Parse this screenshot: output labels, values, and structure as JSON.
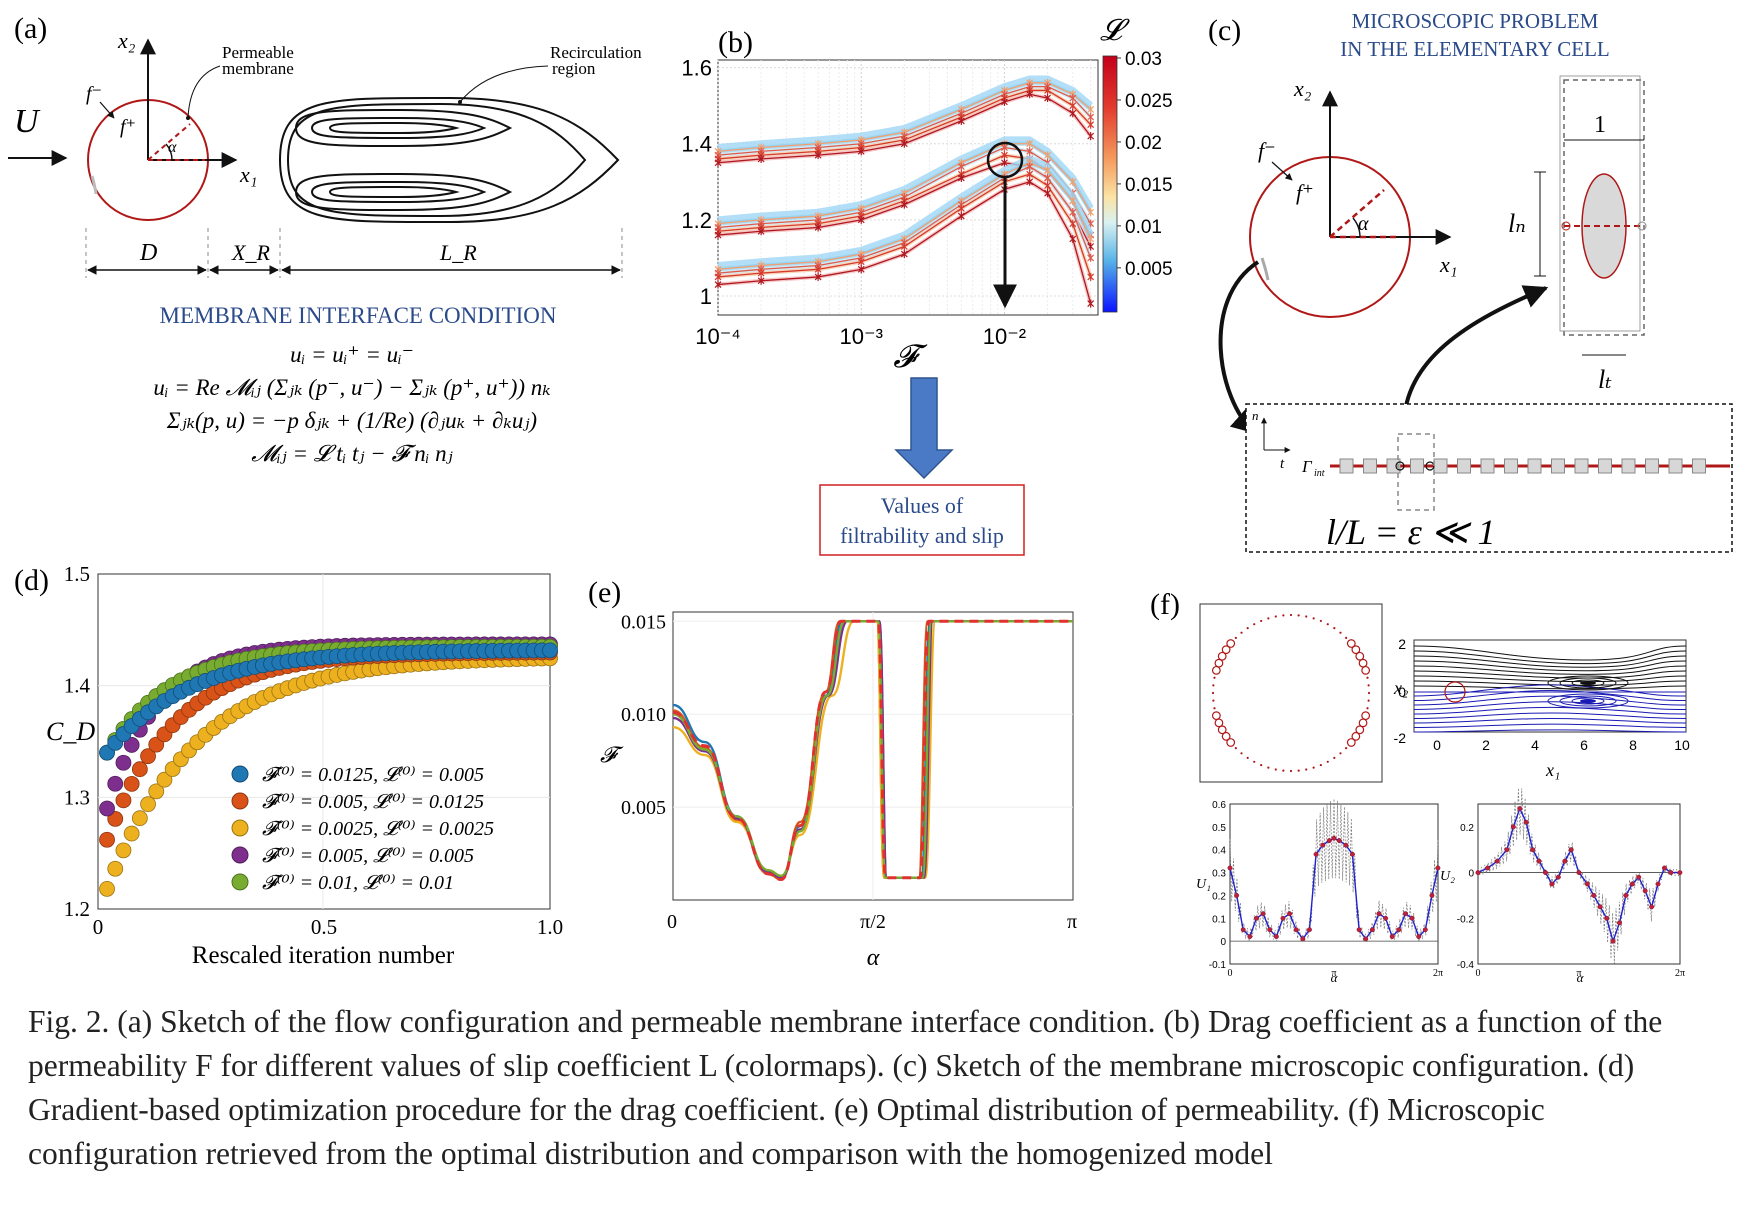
{
  "figure": {
    "caption": "Fig. 2. (a) Sketch of the flow configuration and permeable membrane interface condition. (b) Drag coefficient as a function of the permeability F for different values of slip coefficient L (colormaps). (c) Sketch of the membrane microscopic configuration. (d) Gradient-based optimization procedure for the drag coefficient. (e) Optimal distribution of permeability. (f) Microscopic configuration retrieved from the optimal distribution and comparison with the homogenized model"
  },
  "panel_a": {
    "label": "(a)",
    "x1": "x₁",
    "x2": "x₂",
    "U": "U",
    "f_minus": "f⁻",
    "f_plus": "f⁺",
    "alpha": "α",
    "membrane_label_1": "Permeable",
    "membrane_label_2": "membrane",
    "recirc_label_1": "Recirculation",
    "recirc_label_2": "region",
    "D": "D",
    "XR": "X_R",
    "LR": "L_R",
    "condition_title": "MEMBRANE INTERFACE CONDITION",
    "eq1": "uᵢ = uᵢ⁺ = uᵢ⁻",
    "eq2": "uᵢ = Re 𝓜ᵢⱼ (Σⱼₖ (p⁻, u⁻) − Σⱼₖ (p⁺, u⁺)) nₖ",
    "eq3": "Σⱼₖ(p, u) = −p δⱼₖ + (1/Re) (∂ⱼuₖ + ∂ₖuⱼ)",
    "eq4": "𝓜ᵢⱼ = 𝓛 tᵢ tⱼ − 𝓕 nᵢ nⱼ"
  },
  "panel_b": {
    "label": "(b)",
    "xlabel": "𝓕",
    "colorbar_title": "𝓛",
    "colorbar_ticks": [
      "0.03",
      "0.025",
      "0.02",
      "0.015",
      "0.01",
      "0.005"
    ],
    "result_box_1": "Values of",
    "result_box_2": "filtrability and slip",
    "accent": "#3a6fb8"
  },
  "panel_c": {
    "label": "(c)",
    "title_1": "MICROSCOPIC PROBLEM",
    "title_2": "IN THE ELEMENTARY CELL",
    "x1": "x₁",
    "x2": "x₂",
    "f_minus": "f⁻",
    "f_plus": "f⁺",
    "alpha": "α",
    "cell_width": "1",
    "ln": "lₙ",
    "lt": "lₜ",
    "n": "n",
    "t": "t",
    "gamma": "Γ",
    "gamma_sub": "int",
    "ratio": "l/L = ε ≪ 1"
  },
  "panel_e_meta": {
    "label": "(e)",
    "xlabel": "α",
    "ylabel": "𝓕"
  },
  "panel_f": {
    "label": "(f)",
    "x1": "x₁",
    "x2": "x₂",
    "U1": "U₁",
    "U2": "U₂",
    "alpha": "α",
    "stream_ticks_x": [
      "0",
      "2",
      "4",
      "6",
      "8",
      "10"
    ],
    "stream_ticks_y": [
      "2",
      "0",
      "-2"
    ],
    "u1_ticks": [
      "0.6",
      "0.5",
      "0.4",
      "0.3",
      "0.2",
      "0.1",
      "0",
      "-0.1"
    ],
    "u2_ticks": [
      "0.2",
      "0",
      "-0.2",
      "-0.4"
    ],
    "alpha_ticks": [
      "0",
      "π",
      "2π"
    ]
  },
  "chart_data": [
    {
      "id": "b",
      "type": "line",
      "log_x": true,
      "x_ticks": [
        "10⁻⁴",
        "10⁻³",
        "10⁻²"
      ],
      "y_ticks": [
        "1.6",
        "1.4",
        "1.2",
        "1"
      ],
      "xlim": [
        0.0001,
        0.045
      ],
      "ylim": [
        0.95,
        1.62
      ],
      "x": [
        0.0001,
        0.0002,
        0.0005,
        0.001,
        0.002,
        0.005,
        0.01,
        0.015,
        0.02,
        0.03,
        0.04
      ],
      "groups": [
        {
          "series": [
            {
              "values": [
                1.38,
                1.39,
                1.4,
                1.41,
                1.43,
                1.49,
                1.54,
                1.56,
                1.56,
                1.53,
                1.49
              ]
            },
            {
              "values": [
                1.37,
                1.38,
                1.39,
                1.4,
                1.42,
                1.48,
                1.53,
                1.55,
                1.55,
                1.52,
                1.47
              ]
            },
            {
              "values": [
                1.36,
                1.37,
                1.38,
                1.39,
                1.41,
                1.47,
                1.52,
                1.54,
                1.54,
                1.5,
                1.45
              ]
            },
            {
              "values": [
                1.35,
                1.36,
                1.37,
                1.38,
                1.4,
                1.46,
                1.51,
                1.53,
                1.52,
                1.48,
                1.42
              ]
            }
          ]
        },
        {
          "series": [
            {
              "values": [
                1.19,
                1.2,
                1.21,
                1.23,
                1.27,
                1.35,
                1.4,
                1.4,
                1.37,
                1.3,
                1.22
              ]
            },
            {
              "values": [
                1.18,
                1.19,
                1.2,
                1.22,
                1.26,
                1.34,
                1.39,
                1.38,
                1.35,
                1.27,
                1.19
              ]
            },
            {
              "values": [
                1.17,
                1.18,
                1.19,
                1.21,
                1.25,
                1.32,
                1.37,
                1.36,
                1.33,
                1.25,
                1.16
              ]
            },
            {
              "values": [
                1.16,
                1.17,
                1.18,
                1.2,
                1.24,
                1.31,
                1.35,
                1.34,
                1.31,
                1.22,
                1.13
              ]
            }
          ]
        },
        {
          "series": [
            {
              "values": [
                1.07,
                1.08,
                1.09,
                1.11,
                1.15,
                1.25,
                1.32,
                1.35,
                1.33,
                1.25,
                1.15
              ]
            },
            {
              "values": [
                1.06,
                1.07,
                1.08,
                1.1,
                1.14,
                1.24,
                1.31,
                1.34,
                1.31,
                1.22,
                1.1
              ]
            },
            {
              "values": [
                1.05,
                1.06,
                1.07,
                1.09,
                1.13,
                1.23,
                1.3,
                1.32,
                1.29,
                1.19,
                1.05
              ]
            },
            {
              "values": [
                1.03,
                1.04,
                1.05,
                1.07,
                1.11,
                1.21,
                1.28,
                1.3,
                1.27,
                1.15,
                0.98
              ]
            }
          ]
        }
      ]
    },
    {
      "id": "d",
      "type": "scatter",
      "ylabel": "C_D",
      "xlabel": "Rescaled iteration number",
      "x_ticks": [
        "0",
        "0.5",
        "1.0"
      ],
      "y_ticks": [
        "1.5",
        "1.4",
        "1.3",
        "1.2"
      ],
      "xlim": [
        0,
        1
      ],
      "ylim": [
        1.2,
        1.5
      ],
      "series": [
        {
          "name": "𝓕⁽⁰⁾ = 0.0125, 𝓛⁽⁰⁾ = 0.005",
          "color": "#1f77b4",
          "start": 1.34,
          "end": 1.432,
          "rate": 5.5
        },
        {
          "name": "𝓕⁽⁰⁾ = 0.005, 𝓛⁽⁰⁾ = 0.0125",
          "color": "#d95319",
          "start": 1.262,
          "end": 1.43,
          "rate": 6.5
        },
        {
          "name": "𝓕⁽⁰⁾ = 0.0025, 𝓛⁽⁰⁾ = 0.0025",
          "color": "#edb120",
          "start": 1.218,
          "end": 1.426,
          "rate": 5.0
        },
        {
          "name": "𝓕⁽⁰⁾ = 0.005, 𝓛⁽⁰⁾ = 0.005",
          "color": "#7e2f8e",
          "start": 1.29,
          "end": 1.437,
          "rate": 9.0
        },
        {
          "name": "𝓕⁽⁰⁾ = 0.01, 𝓛⁽⁰⁾ = 0.01",
          "color": "#77ac30",
          "start": 1.34,
          "end": 1.435,
          "rate": 7.0
        }
      ]
    },
    {
      "id": "e",
      "type": "line",
      "x_ticks": [
        "0",
        "π/2",
        "π"
      ],
      "y_ticks": [
        "0.015",
        "0.010",
        "0.005"
      ],
      "xlim": [
        0,
        3.1416
      ],
      "ylim": [
        0.0,
        0.0155
      ],
      "series": [
        {
          "color": "#1f77b4",
          "values": [
            [
              0,
              0.0105
            ],
            [
              0.25,
              0.0085
            ],
            [
              0.5,
              0.0045
            ],
            [
              0.75,
              0.0015
            ],
            [
              0.85,
              0.0012
            ],
            [
              1.0,
              0.004
            ],
            [
              1.2,
              0.011
            ],
            [
              1.33,
              0.015
            ],
            [
              1.62,
              0.015
            ],
            [
              1.68,
              0.0012
            ],
            [
              1.95,
              0.0012
            ],
            [
              2.02,
              0.015
            ],
            [
              3.14,
              0.015
            ]
          ]
        },
        {
          "color": "#d95319",
          "values": [
            [
              0,
              0.0102
            ],
            [
              0.25,
              0.0082
            ],
            [
              0.5,
              0.0043
            ],
            [
              0.75,
              0.0014
            ],
            [
              0.85,
              0.0011
            ],
            [
              1.0,
              0.0042
            ],
            [
              1.2,
              0.0112
            ],
            [
              1.31,
              0.015
            ],
            [
              1.6,
              0.015
            ],
            [
              1.66,
              0.0012
            ],
            [
              1.93,
              0.0012
            ],
            [
              2.0,
              0.015
            ],
            [
              3.14,
              0.015
            ]
          ]
        },
        {
          "color": "#edb120",
          "values": [
            [
              0,
              0.0093
            ],
            [
              0.25,
              0.0078
            ],
            [
              0.5,
              0.0042
            ],
            [
              0.75,
              0.0016
            ],
            [
              0.85,
              0.0013
            ],
            [
              1.0,
              0.0035
            ],
            [
              1.25,
              0.011
            ],
            [
              1.42,
              0.015
            ],
            [
              1.6,
              0.015
            ],
            [
              1.66,
              0.0012
            ],
            [
              1.98,
              0.0012
            ],
            [
              2.06,
              0.015
            ],
            [
              3.14,
              0.015
            ]
          ]
        },
        {
          "color": "#7e2f8e",
          "values": [
            [
              0,
              0.0098
            ],
            [
              0.25,
              0.008
            ],
            [
              0.5,
              0.0044
            ],
            [
              0.75,
              0.0015
            ],
            [
              0.85,
              0.0012
            ],
            [
              1.0,
              0.0038
            ],
            [
              1.22,
              0.011
            ],
            [
              1.37,
              0.015
            ],
            [
              1.62,
              0.015
            ],
            [
              1.68,
              0.0012
            ],
            [
              1.97,
              0.0012
            ],
            [
              2.04,
              0.015
            ],
            [
              3.14,
              0.015
            ]
          ]
        },
        {
          "color": "#77ac30",
          "values": [
            [
              0,
              0.01
            ],
            [
              0.25,
              0.0081
            ],
            [
              0.5,
              0.0045
            ],
            [
              0.75,
              0.0016
            ],
            [
              0.85,
              0.0013
            ],
            [
              1.0,
              0.0037
            ],
            [
              1.21,
              0.011
            ],
            [
              1.35,
              0.015
            ],
            [
              1.61,
              0.015
            ],
            [
              1.67,
              0.0012
            ],
            [
              1.96,
              0.0012
            ],
            [
              2.03,
              0.015
            ],
            [
              3.14,
              0.015
            ]
          ]
        },
        {
          "color": "#e03030",
          "dashed": true,
          "values": [
            [
              0,
              0.0101
            ],
            [
              0.25,
              0.0083
            ],
            [
              0.5,
              0.0044
            ],
            [
              0.75,
              0.0014
            ],
            [
              0.85,
              0.0011
            ],
            [
              1.0,
              0.004
            ],
            [
              1.2,
              0.0112
            ],
            [
              1.32,
              0.015
            ],
            [
              1.61,
              0.015
            ],
            [
              1.67,
              0.0012
            ],
            [
              1.94,
              0.0012
            ],
            [
              2.01,
              0.015
            ],
            [
              3.14,
              0.015
            ]
          ]
        }
      ]
    },
    {
      "id": "f_u1",
      "type": "line",
      "ylim": [
        -0.1,
        0.6
      ],
      "xlim": [
        0,
        6.2832
      ],
      "x": [
        0,
        0.2,
        0.4,
        0.6,
        0.8,
        1.0,
        1.2,
        1.4,
        1.6,
        1.8,
        2.0,
        2.2,
        2.4,
        2.6,
        2.8,
        3.0,
        3.14,
        3.3,
        3.5,
        3.7,
        3.9,
        4.1,
        4.3,
        4.5,
        4.7,
        4.9,
        5.1,
        5.3,
        5.5,
        5.7,
        5.9,
        6.1,
        6.28
      ],
      "values": [
        0.32,
        0.2,
        0.05,
        0.02,
        0.1,
        0.12,
        0.05,
        0.02,
        0.1,
        0.12,
        0.05,
        0.01,
        0.05,
        0.38,
        0.42,
        0.44,
        0.45,
        0.44,
        0.42,
        0.38,
        0.05,
        0.01,
        0.05,
        0.12,
        0.1,
        0.02,
        0.05,
        0.12,
        0.1,
        0.02,
        0.05,
        0.2,
        0.32
      ]
    },
    {
      "id": "f_u2",
      "type": "line",
      "ylim": [
        -0.4,
        0.3
      ],
      "xlim": [
        0,
        6.2832
      ],
      "x": [
        0,
        0.3,
        0.6,
        0.9,
        1.1,
        1.3,
        1.5,
        1.7,
        1.9,
        2.1,
        2.3,
        2.5,
        2.7,
        2.9,
        3.14,
        3.4,
        3.6,
        3.8,
        4.0,
        4.2,
        4.4,
        4.6,
        4.8,
        5.0,
        5.2,
        5.4,
        5.6,
        5.8,
        6.0,
        6.28
      ],
      "values": [
        0.0,
        0.02,
        0.05,
        0.1,
        0.2,
        0.28,
        0.22,
        0.1,
        0.05,
        0.0,
        -0.05,
        -0.02,
        0.05,
        0.1,
        0.0,
        -0.05,
        -0.1,
        -0.15,
        -0.2,
        -0.3,
        -0.22,
        -0.1,
        -0.05,
        -0.02,
        -0.08,
        -0.15,
        -0.05,
        0.02,
        0.0,
        0.0
      ]
    }
  ]
}
